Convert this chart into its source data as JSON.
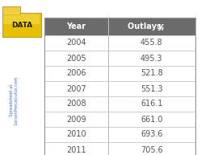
{
  "years": [
    "2004",
    "2005",
    "2006",
    "2007",
    "2008",
    "2009",
    "2010",
    "2011"
  ],
  "outlays": [
    "455.8",
    "495.3",
    "521.8",
    "551.3",
    "616.1",
    "661.0",
    "693.6",
    "705.6"
  ],
  "col_header_year": "Year",
  "col_header_outlays_main": "Outlays, ",
  "col_header_outlays_italic": "y",
  "header_bg": "#6b6b6b",
  "header_text_color": "#ffffff",
  "cell_text_color": "#555555",
  "border_color": "#bbbbbb",
  "outer_border_color": "#999999",
  "table_bg": "#ffffff",
  "sidebar_text_line1": "Spreadsheet at",
  "sidebar_text_line2": "LarsonPrecalculus.com",
  "sidebar_text_color": "#4472c4",
  "data_label": "DATA",
  "folder_color_main": "#e8c000",
  "folder_color_light": "#f5e060",
  "folder_tab_color": "#f0d040",
  "background_color": "#ffffff"
}
